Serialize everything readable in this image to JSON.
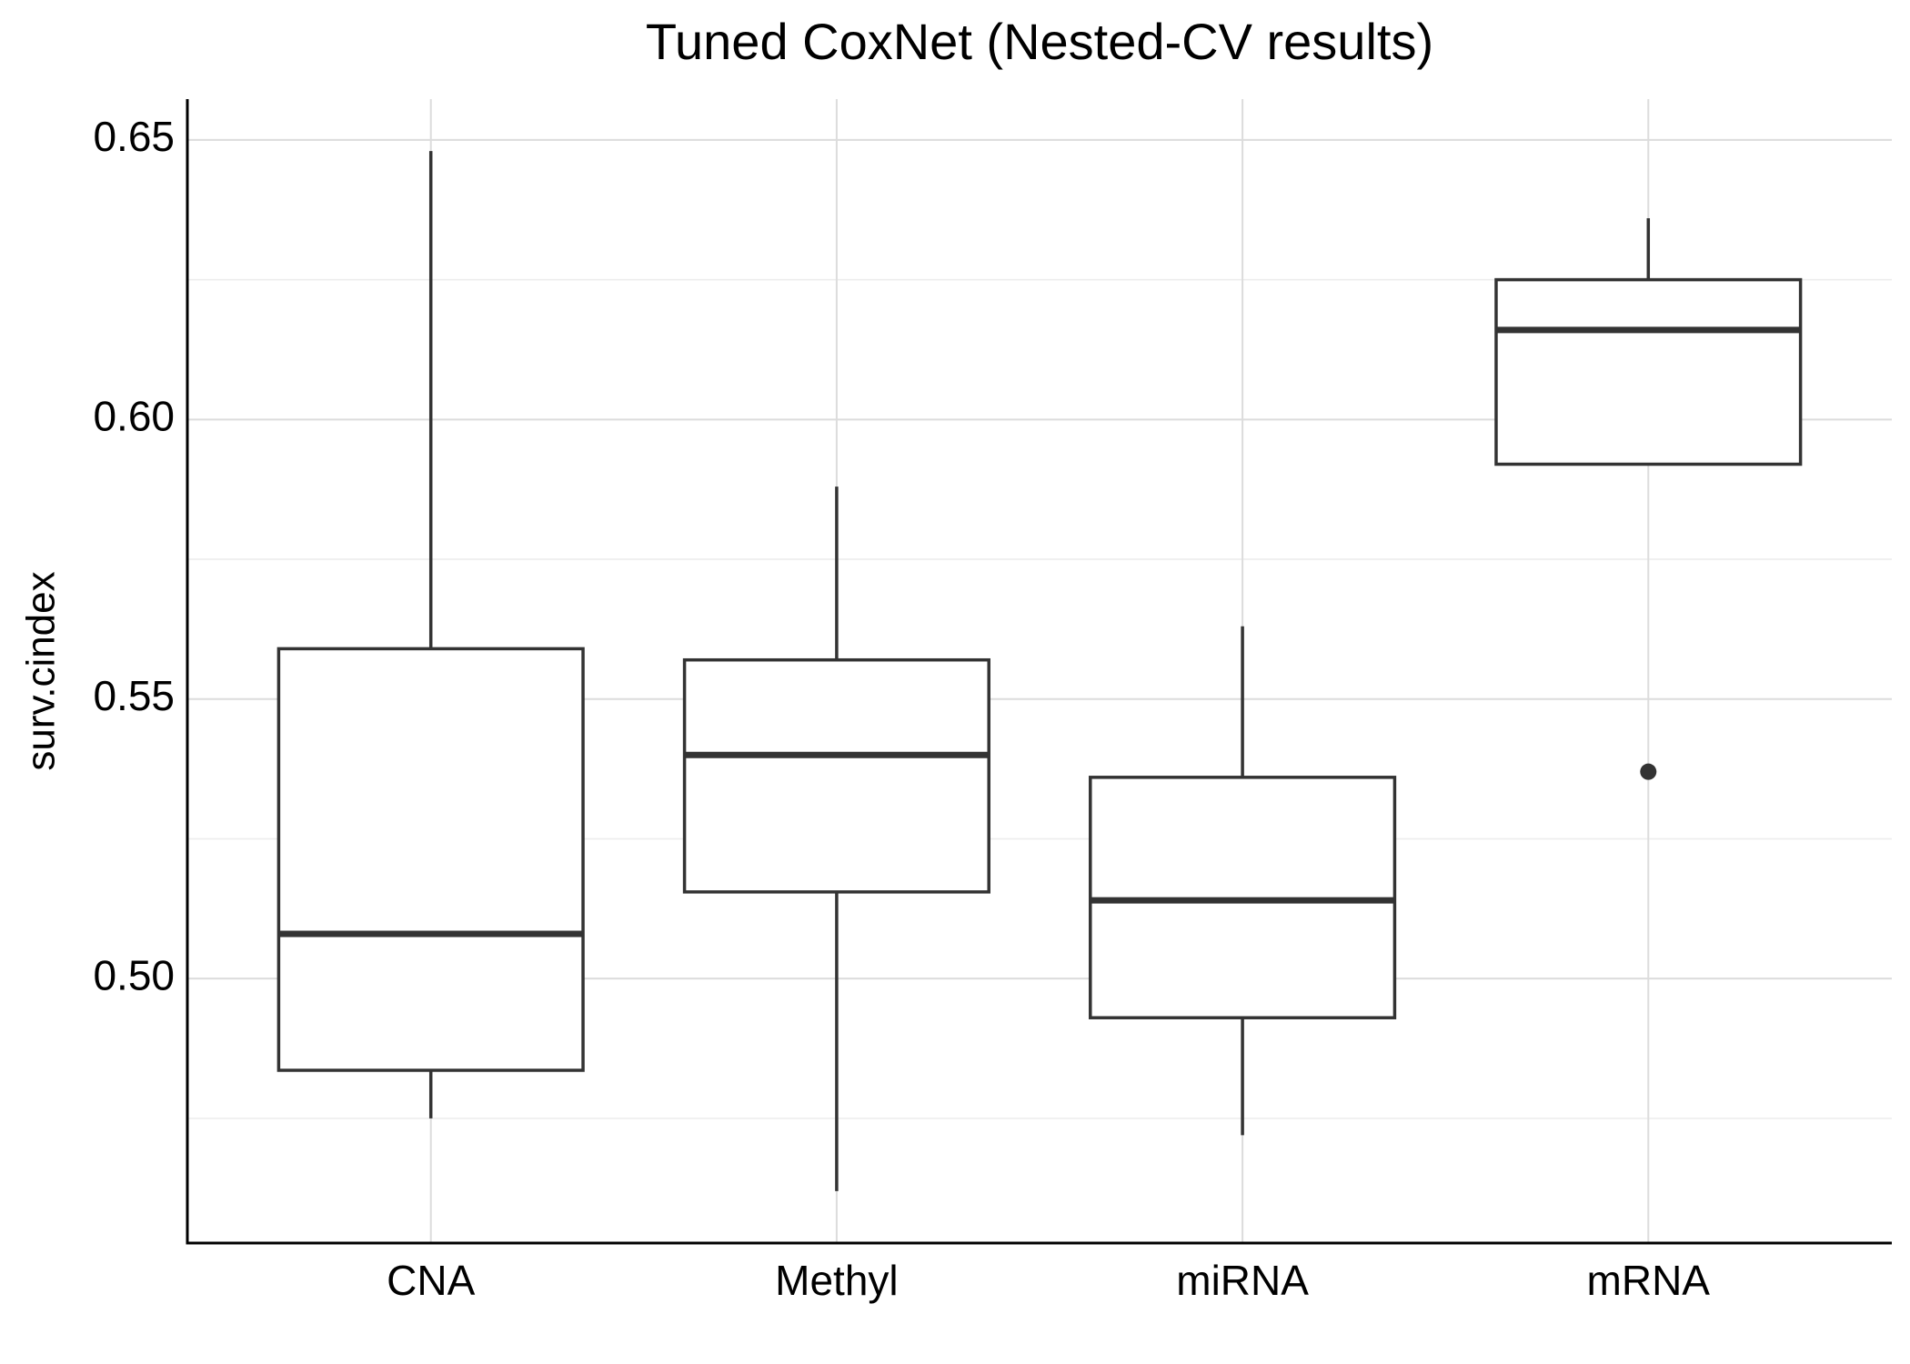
{
  "chart_data": {
    "type": "box",
    "title": "Tuned CoxNet (Nested-CV results)",
    "y_label": "surv.cindex",
    "categories": [
      "CNA",
      "Methyl",
      "miRNA",
      "mRNA"
    ],
    "boxes": [
      {
        "min": 0.475,
        "q1": 0.4836,
        "median": 0.508,
        "q3": 0.559,
        "max": 0.648
      },
      {
        "min": 0.462,
        "q1": 0.5155,
        "median": 0.54,
        "q3": 0.557,
        "max": 0.588
      },
      {
        "min": 0.472,
        "q1": 0.493,
        "median": 0.514,
        "q3": 0.536,
        "max": 0.563
      },
      {
        "min": 0.592,
        "q1": 0.592,
        "median": 0.616,
        "q3": 0.625,
        "max": 0.636,
        "outliers": [
          0.537
        ]
      }
    ],
    "color": "#333333",
    "ylim": [
      0.4527,
      0.6573
    ],
    "yticks": [
      {
        "value": 0.5,
        "label": "0.50"
      },
      0.55,
      {
        "value": 0.6,
        "label": "0.60"
      },
      0.65
    ],
    "minor_yticks": [
      0.475,
      0.525,
      0.575,
      0.625
    ],
    "grid": true
  }
}
